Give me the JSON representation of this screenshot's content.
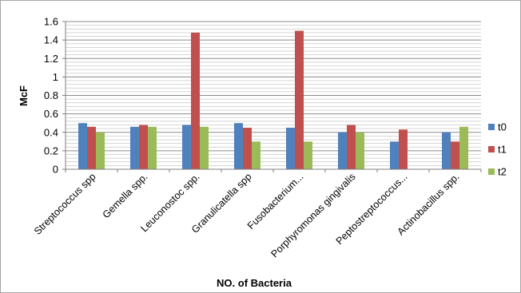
{
  "chart_data": {
    "type": "bar",
    "xlabel": "NO. of Bacteria",
    "ylabel": "McF",
    "ylim": [
      0,
      1.6
    ],
    "yticks": [
      "0",
      "0.2",
      "0.4",
      "0.6",
      "0.8",
      "1",
      "1.2",
      "1.4",
      "1.6"
    ],
    "grid": true,
    "legend_position": "right",
    "categories": [
      "Streptococcus spp",
      "Gemella spp.",
      "Leuconostoc spp.",
      "Granulicatella spp",
      "Fusobacterium...",
      "Porphyromonas gingivalis",
      "Peptostreptococcus...",
      "Actinobacillus spp."
    ],
    "series": [
      {
        "name": "t0",
        "color": "#4f81bd",
        "values": [
          0.5,
          0.46,
          0.48,
          0.5,
          0.45,
          0.4,
          0.3,
          0.4
        ]
      },
      {
        "name": "t1",
        "color": "#c0504d",
        "values": [
          0.46,
          0.48,
          1.48,
          0.45,
          1.5,
          0.48,
          0.43,
          0.3
        ]
      },
      {
        "name": "t2",
        "color": "#9bbb59",
        "values": [
          0.4,
          0.46,
          0.46,
          0.3,
          0.3,
          0.4,
          0.0,
          0.46
        ]
      }
    ]
  }
}
